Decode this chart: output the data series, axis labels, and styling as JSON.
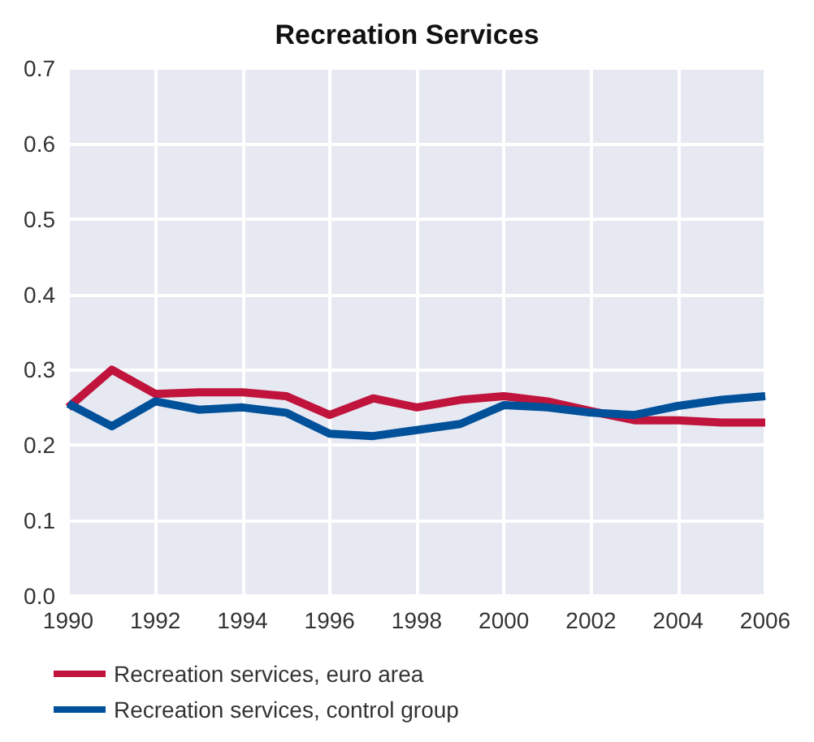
{
  "chart_data": {
    "type": "line",
    "title": "Recreation Services",
    "x": [
      1990,
      1991,
      1992,
      1993,
      1994,
      1995,
      1996,
      1997,
      1998,
      1999,
      2000,
      2001,
      2002,
      2003,
      2004,
      2005,
      2006
    ],
    "series": [
      {
        "name": "Recreation services, euro area",
        "color": "#c0143c",
        "values": [
          0.25,
          0.3,
          0.268,
          0.27,
          0.27,
          0.265,
          0.24,
          0.262,
          0.25,
          0.26,
          0.265,
          0.258,
          0.245,
          0.233,
          0.233,
          0.23,
          0.23
        ]
      },
      {
        "name": "Recreation services, control group",
        "color": "#00509a",
        "values": [
          0.255,
          0.225,
          0.258,
          0.247,
          0.25,
          0.243,
          0.215,
          0.212,
          0.22,
          0.228,
          0.253,
          0.25,
          0.243,
          0.24,
          0.252,
          0.26,
          0.265
        ]
      }
    ],
    "xlim": [
      1990,
      2006
    ],
    "xticks": [
      1990,
      1992,
      1994,
      1996,
      1998,
      2000,
      2002,
      2004,
      2006
    ],
    "ylim": [
      0,
      0.7
    ],
    "yticks": [
      {
        "value": 0,
        "label": "0.0"
      },
      0.1,
      0.2,
      0.3,
      0.4,
      0.5,
      0.6,
      0.7
    ],
    "grid": true,
    "legend": "bottom",
    "marker": "none",
    "line_style": "solid"
  }
}
